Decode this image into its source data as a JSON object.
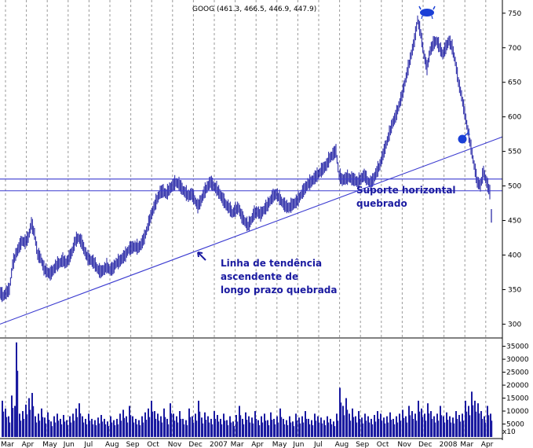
{
  "chart_data": {
    "type": "bar",
    "title": "GOOG (461.3, 466.5, 446.9, 447.9)",
    "price_axis": {
      "ticks": [
        300,
        350,
        400,
        450,
        500,
        550,
        600,
        650,
        700,
        750
      ],
      "ylim": [
        280,
        760
      ]
    },
    "volume_axis": {
      "ticks": [
        5000,
        10000,
        15000,
        20000,
        25000,
        30000,
        35000
      ],
      "ylim": [
        0,
        37000
      ],
      "scale_label": "x10"
    },
    "months": [
      "Mar",
      "Apr",
      "May",
      "Jun",
      "Jul",
      "Aug",
      "Sep",
      "Oct",
      "Nov",
      "Dec",
      "2007",
      "Mar",
      "Apr",
      "May",
      "Jun",
      "Jul",
      "Aug",
      "Sep",
      "Oct",
      "Nov",
      "Dec",
      "2008",
      "Mar",
      "Apr"
    ],
    "price_series": [
      [
        0,
        345
      ],
      [
        4,
        340
      ],
      [
        8,
        345
      ],
      [
        12,
        350
      ],
      [
        16,
        385
      ],
      [
        20,
        400
      ],
      [
        24,
        410
      ],
      [
        28,
        420
      ],
      [
        32,
        418
      ],
      [
        36,
        425
      ],
      [
        40,
        445
      ],
      [
        44,
        430
      ],
      [
        48,
        400
      ],
      [
        52,
        395
      ],
      [
        56,
        380
      ],
      [
        60,
        375
      ],
      [
        64,
        372
      ],
      [
        68,
        378
      ],
      [
        72,
        385
      ],
      [
        76,
        388
      ],
      [
        80,
        392
      ],
      [
        84,
        388
      ],
      [
        88,
        395
      ],
      [
        92,
        405
      ],
      [
        96,
        420
      ],
      [
        100,
        425
      ],
      [
        104,
        418
      ],
      [
        108,
        405
      ],
      [
        112,
        395
      ],
      [
        116,
        392
      ],
      [
        120,
        388
      ],
      [
        124,
        380
      ],
      [
        128,
        375
      ],
      [
        132,
        378
      ],
      [
        136,
        383
      ],
      [
        140,
        378
      ],
      [
        144,
        380
      ],
      [
        148,
        388
      ],
      [
        152,
        390
      ],
      [
        156,
        395
      ],
      [
        160,
        400
      ],
      [
        164,
        408
      ],
      [
        168,
        410
      ],
      [
        172,
        412
      ],
      [
        176,
        410
      ],
      [
        180,
        415
      ],
      [
        184,
        425
      ],
      [
        188,
        440
      ],
      [
        192,
        455
      ],
      [
        196,
        468
      ],
      [
        200,
        480
      ],
      [
        204,
        490
      ],
      [
        208,
        492
      ],
      [
        212,
        488
      ],
      [
        216,
        495
      ],
      [
        220,
        500
      ],
      [
        224,
        505
      ],
      [
        228,
        502
      ],
      [
        232,
        495
      ],
      [
        236,
        490
      ],
      [
        240,
        485
      ],
      [
        244,
        488
      ],
      [
        248,
        480
      ],
      [
        252,
        470
      ],
      [
        256,
        478
      ],
      [
        260,
        490
      ],
      [
        264,
        498
      ],
      [
        268,
        505
      ],
      [
        272,
        500
      ],
      [
        276,
        495
      ],
      [
        280,
        488
      ],
      [
        284,
        480
      ],
      [
        288,
        472
      ],
      [
        292,
        468
      ],
      [
        296,
        460
      ],
      [
        300,
        465
      ],
      [
        304,
        468
      ],
      [
        308,
        455
      ],
      [
        312,
        448
      ],
      [
        316,
        442
      ],
      [
        320,
        450
      ],
      [
        324,
        460
      ],
      [
        328,
        462
      ],
      [
        332,
        458
      ],
      [
        336,
        465
      ],
      [
        340,
        470
      ],
      [
        344,
        478
      ],
      [
        348,
        485
      ],
      [
        352,
        488
      ],
      [
        356,
        482
      ],
      [
        360,
        475
      ],
      [
        364,
        470
      ],
      [
        368,
        468
      ],
      [
        372,
        472
      ],
      [
        376,
        475
      ],
      [
        380,
        480
      ],
      [
        384,
        488
      ],
      [
        388,
        495
      ],
      [
        392,
        502
      ],
      [
        396,
        505
      ],
      [
        400,
        510
      ],
      [
        404,
        515
      ],
      [
        408,
        520
      ],
      [
        412,
        525
      ],
      [
        416,
        530
      ],
      [
        420,
        540
      ],
      [
        424,
        545
      ],
      [
        428,
        550
      ],
      [
        432,
        515
      ],
      [
        436,
        508
      ],
      [
        440,
        510
      ],
      [
        444,
        512
      ],
      [
        448,
        510
      ],
      [
        452,
        508
      ],
      [
        456,
        505
      ],
      [
        460,
        510
      ],
      [
        464,
        515
      ],
      [
        468,
        508
      ],
      [
        472,
        503
      ],
      [
        476,
        510
      ],
      [
        480,
        520
      ],
      [
        484,
        530
      ],
      [
        488,
        545
      ],
      [
        492,
        560
      ],
      [
        496,
        575
      ],
      [
        500,
        590
      ],
      [
        504,
        600
      ],
      [
        508,
        615
      ],
      [
        512,
        630
      ],
      [
        516,
        650
      ],
      [
        520,
        670
      ],
      [
        524,
        690
      ],
      [
        528,
        710
      ],
      [
        532,
        740
      ],
      [
        536,
        720
      ],
      [
        540,
        690
      ],
      [
        544,
        670
      ],
      [
        548,
        695
      ],
      [
        552,
        705
      ],
      [
        556,
        710
      ],
      [
        560,
        700
      ],
      [
        564,
        690
      ],
      [
        568,
        700
      ],
      [
        572,
        710
      ],
      [
        576,
        700
      ],
      [
        580,
        680
      ],
      [
        584,
        650
      ],
      [
        588,
        630
      ],
      [
        592,
        605
      ],
      [
        596,
        580
      ],
      [
        600,
        555
      ],
      [
        604,
        530
      ],
      [
        608,
        505
      ],
      [
        612,
        500
      ],
      [
        616,
        520
      ],
      [
        620,
        505
      ],
      [
        624,
        490
      ],
      [
        626,
        447
      ]
    ],
    "volume_series": [
      [
        2,
        14000
      ],
      [
        6,
        11000
      ],
      [
        10,
        8000
      ],
      [
        14,
        16000
      ],
      [
        18,
        12000
      ],
      [
        20,
        36500
      ],
      [
        24,
        9000
      ],
      [
        28,
        10000
      ],
      [
        32,
        12500
      ],
      [
        36,
        15000
      ],
      [
        40,
        17000
      ],
      [
        44,
        8000
      ],
      [
        48,
        9000
      ],
      [
        52,
        11000
      ],
      [
        56,
        7500
      ],
      [
        60,
        9500
      ],
      [
        64,
        6000
      ],
      [
        68,
        8000
      ],
      [
        72,
        9000
      ],
      [
        76,
        7000
      ],
      [
        80,
        8500
      ],
      [
        84,
        6500
      ],
      [
        88,
        8000
      ],
      [
        92,
        9000
      ],
      [
        96,
        11000
      ],
      [
        100,
        13000
      ],
      [
        104,
        8000
      ],
      [
        108,
        7000
      ],
      [
        112,
        9000
      ],
      [
        116,
        7000
      ],
      [
        120,
        6500
      ],
      [
        124,
        7500
      ],
      [
        128,
        8500
      ],
      [
        132,
        7000
      ],
      [
        136,
        6000
      ],
      [
        140,
        8000
      ],
      [
        144,
        6500
      ],
      [
        148,
        7000
      ],
      [
        152,
        9000
      ],
      [
        156,
        10500
      ],
      [
        160,
        8000
      ],
      [
        164,
        12000
      ],
      [
        168,
        8000
      ],
      [
        172,
        7000
      ],
      [
        176,
        6500
      ],
      [
        180,
        8000
      ],
      [
        184,
        9500
      ],
      [
        188,
        11000
      ],
      [
        192,
        14000
      ],
      [
        196,
        10000
      ],
      [
        200,
        9000
      ],
      [
        204,
        8000
      ],
      [
        208,
        11000
      ],
      [
        212,
        7000
      ],
      [
        216,
        13000
      ],
      [
        220,
        9000
      ],
      [
        224,
        8000
      ],
      [
        228,
        10000
      ],
      [
        232,
        7000
      ],
      [
        236,
        6500
      ],
      [
        240,
        11000
      ],
      [
        244,
        8000
      ],
      [
        248,
        9000
      ],
      [
        252,
        14000
      ],
      [
        256,
        7500
      ],
      [
        260,
        9500
      ],
      [
        264,
        8000
      ],
      [
        268,
        7000
      ],
      [
        272,
        10000
      ],
      [
        276,
        8500
      ],
      [
        280,
        7000
      ],
      [
        284,
        9000
      ],
      [
        288,
        6500
      ],
      [
        292,
        8000
      ],
      [
        296,
        6000
      ],
      [
        300,
        8500
      ],
      [
        304,
        12000
      ],
      [
        308,
        7000
      ],
      [
        312,
        9500
      ],
      [
        316,
        8000
      ],
      [
        320,
        7500
      ],
      [
        324,
        10000
      ],
      [
        328,
        6500
      ],
      [
        332,
        8000
      ],
      [
        336,
        9000
      ],
      [
        340,
        6500
      ],
      [
        344,
        9500
      ],
      [
        348,
        7000
      ],
      [
        352,
        8000
      ],
      [
        356,
        11000
      ],
      [
        360,
        7000
      ],
      [
        364,
        6500
      ],
      [
        368,
        8000
      ],
      [
        372,
        6000
      ],
      [
        376,
        9000
      ],
      [
        380,
        7500
      ],
      [
        384,
        8000
      ],
      [
        388,
        10000
      ],
      [
        392,
        7000
      ],
      [
        396,
        6500
      ],
      [
        400,
        9000
      ],
      [
        404,
        8000
      ],
      [
        408,
        7500
      ],
      [
        412,
        6500
      ],
      [
        416,
        8000
      ],
      [
        420,
        7000
      ],
      [
        424,
        6000
      ],
      [
        428,
        9000
      ],
      [
        432,
        19000
      ],
      [
        436,
        12000
      ],
      [
        440,
        15000
      ],
      [
        444,
        9000
      ],
      [
        448,
        11000
      ],
      [
        452,
        8000
      ],
      [
        456,
        10000
      ],
      [
        460,
        7500
      ],
      [
        464,
        9000
      ],
      [
        468,
        8000
      ],
      [
        472,
        7000
      ],
      [
        476,
        8500
      ],
      [
        480,
        10000
      ],
      [
        484,
        9000
      ],
      [
        488,
        7500
      ],
      [
        492,
        8000
      ],
      [
        496,
        9500
      ],
      [
        500,
        7000
      ],
      [
        504,
        8000
      ],
      [
        508,
        9000
      ],
      [
        512,
        10500
      ],
      [
        516,
        8000
      ],
      [
        520,
        12000
      ],
      [
        524,
        10000
      ],
      [
        528,
        9000
      ],
      [
        532,
        14000
      ],
      [
        536,
        11000
      ],
      [
        540,
        9000
      ],
      [
        544,
        13000
      ],
      [
        548,
        10000
      ],
      [
        552,
        8000
      ],
      [
        556,
        9000
      ],
      [
        560,
        12000
      ],
      [
        564,
        8000
      ],
      [
        568,
        9500
      ],
      [
        572,
        8000
      ],
      [
        576,
        7500
      ],
      [
        580,
        10000
      ],
      [
        584,
        8500
      ],
      [
        588,
        9000
      ],
      [
        592,
        14000
      ],
      [
        596,
        12000
      ],
      [
        600,
        17500
      ],
      [
        604,
        14000
      ],
      [
        608,
        13000
      ],
      [
        612,
        10000
      ],
      [
        616,
        8000
      ],
      [
        620,
        12000
      ],
      [
        624,
        9000
      ]
    ],
    "lines": [
      {
        "name": "trend",
        "x1": 0,
        "y1": 300,
        "x2": 640,
        "y2": 571
      },
      {
        "name": "support-upper",
        "x1": 0,
        "y1": 510,
        "x2": 640,
        "y2": 510
      },
      {
        "name": "support-lower",
        "x1": 0,
        "y1": 493,
        "x2": 640,
        "y2": 493
      }
    ],
    "annotations": {
      "trend_lines": [
        "Linha de tendência",
        "ascendente de",
        "longo prazo quebrada"
      ],
      "support_lines": [
        "Suporte horizontal",
        "quebrado"
      ]
    },
    "colors": {
      "bars": "#1a1aa0",
      "lines": "#3a3ad0",
      "annotation_text": "#1a1aa0",
      "grid": "#9a9a9a",
      "marker": "#1a3fd6"
    }
  }
}
